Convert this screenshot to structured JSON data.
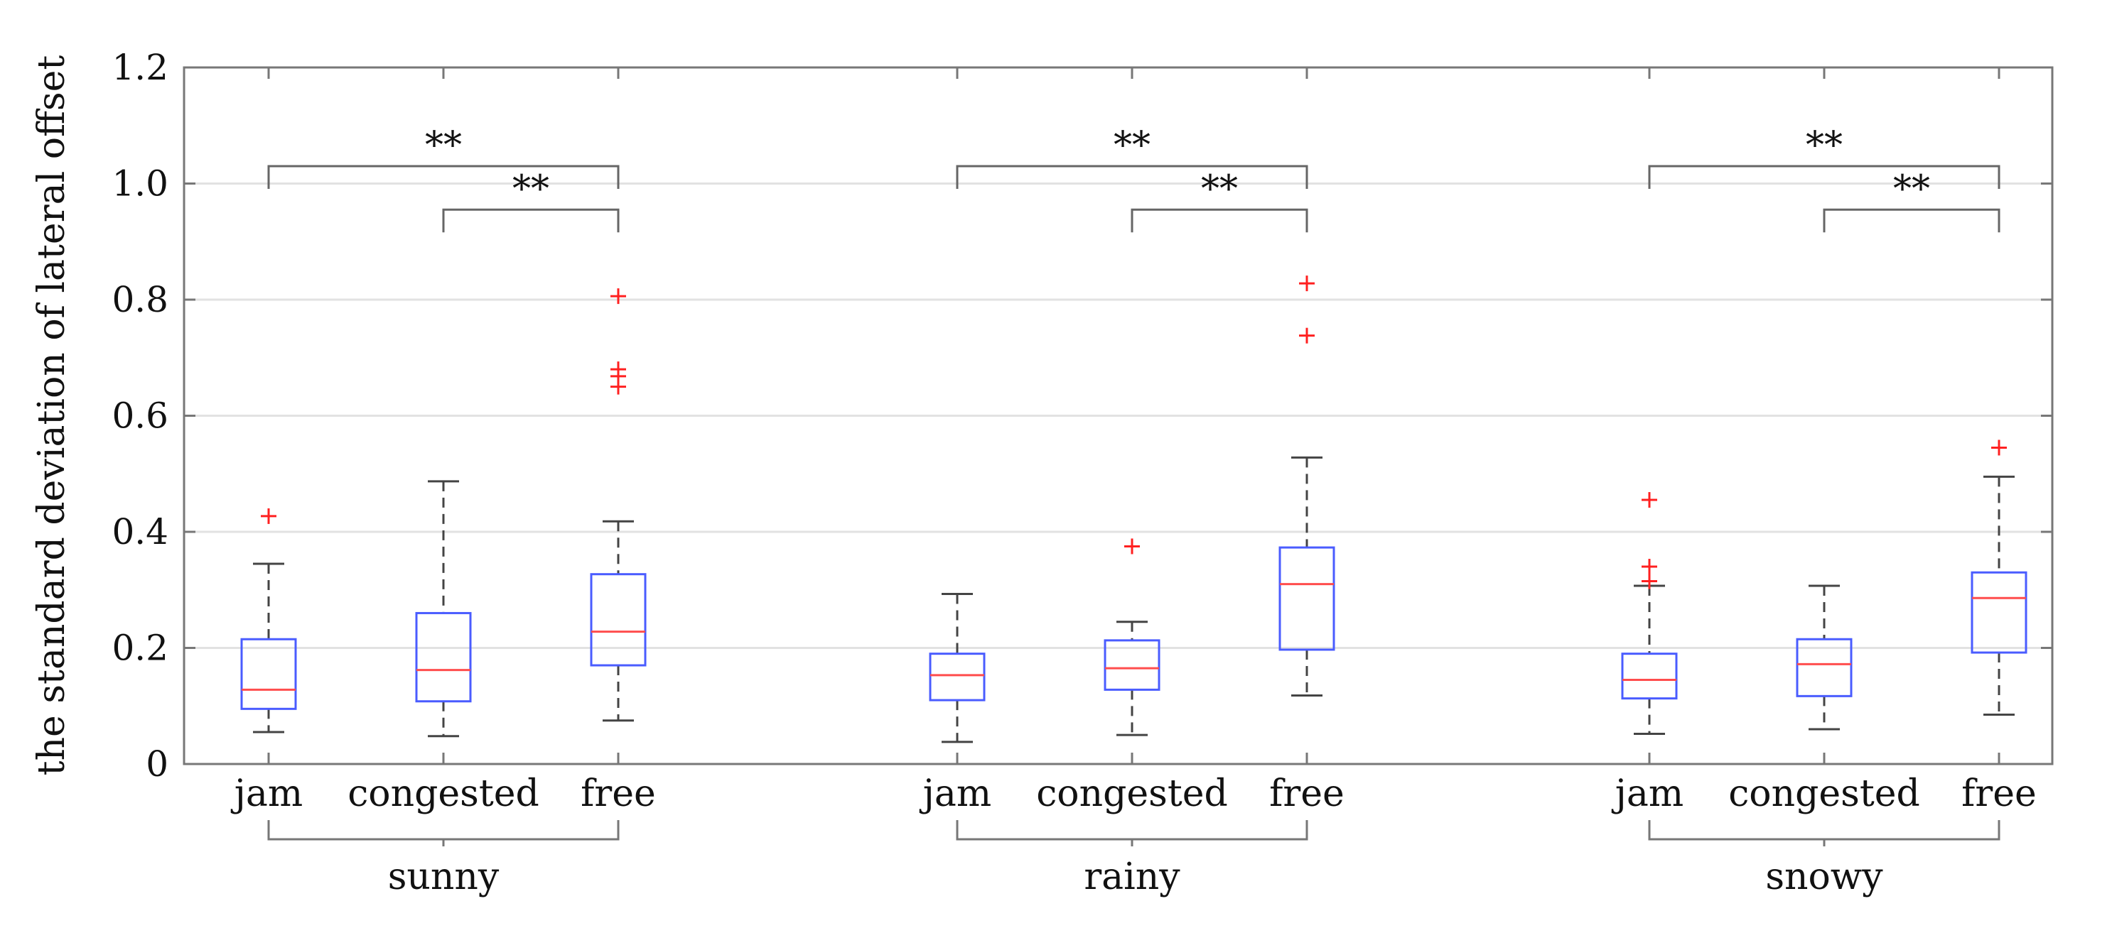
{
  "chart_data": {
    "type": "boxplot",
    "ylabel": "the standard deviation of lateral offset",
    "ylim": [
      0,
      1.2
    ],
    "yticks": [
      0,
      0.2,
      0.4,
      0.6,
      0.8,
      1.0,
      1.2
    ],
    "ytick_labels": [
      "0",
      "0.2",
      "0.4",
      "0.6",
      "0.8",
      "1.0",
      "1.2"
    ],
    "grid": true,
    "colors": {
      "box": "#4a5cff",
      "median": "#ff4d4d",
      "outlier": "#ff2020",
      "whisker": "#444444",
      "grid": "#e2e2e2"
    },
    "groups": [
      {
        "label": "sunny",
        "boxes": [
          {
            "label": "jam",
            "whisker_low": 0.055,
            "q1": 0.095,
            "median": 0.128,
            "q3": 0.215,
            "whisker_high": 0.345,
            "outliers": [
              0.427
            ]
          },
          {
            "label": "congested",
            "whisker_low": 0.048,
            "q1": 0.108,
            "median": 0.162,
            "q3": 0.26,
            "whisker_high": 0.487,
            "outliers": []
          },
          {
            "label": "free",
            "whisker_low": 0.075,
            "q1": 0.17,
            "median": 0.228,
            "q3": 0.327,
            "whisker_high": 0.418,
            "outliers": [
              0.65,
              0.668,
              0.68,
              0.806
            ]
          }
        ],
        "significance": [
          {
            "from": 0,
            "to": 2,
            "label": "**",
            "level": 1.03
          },
          {
            "from": 1,
            "to": 2,
            "label": "**",
            "level": 0.955
          }
        ]
      },
      {
        "label": "rainy",
        "boxes": [
          {
            "label": "jam",
            "whisker_low": 0.038,
            "q1": 0.11,
            "median": 0.153,
            "q3": 0.19,
            "whisker_high": 0.293,
            "outliers": []
          },
          {
            "label": "congested",
            "whisker_low": 0.05,
            "q1": 0.128,
            "median": 0.165,
            "q3": 0.213,
            "whisker_high": 0.245,
            "outliers": [
              0.375
            ]
          },
          {
            "label": "free",
            "whisker_low": 0.118,
            "q1": 0.197,
            "median": 0.31,
            "q3": 0.373,
            "whisker_high": 0.528,
            "outliers": [
              0.738,
              0.828
            ]
          }
        ],
        "significance": [
          {
            "from": 0,
            "to": 2,
            "label": "**",
            "level": 1.03
          },
          {
            "from": 1,
            "to": 2,
            "label": "**",
            "level": 0.955
          }
        ]
      },
      {
        "label": "snowy",
        "boxes": [
          {
            "label": "jam",
            "whisker_low": 0.052,
            "q1": 0.113,
            "median": 0.145,
            "q3": 0.19,
            "whisker_high": 0.307,
            "outliers": [
              0.315,
              0.34,
              0.455
            ]
          },
          {
            "label": "congested",
            "whisker_low": 0.06,
            "q1": 0.117,
            "median": 0.172,
            "q3": 0.215,
            "whisker_high": 0.307,
            "outliers": []
          },
          {
            "label": "free",
            "whisker_low": 0.085,
            "q1": 0.192,
            "median": 0.286,
            "q3": 0.33,
            "whisker_high": 0.495,
            "outliers": [
              0.545
            ]
          }
        ],
        "significance": [
          {
            "from": 0,
            "to": 2,
            "label": "**",
            "level": 1.03
          },
          {
            "from": 1,
            "to": 2,
            "label": "**",
            "level": 0.955
          }
        ]
      }
    ]
  }
}
